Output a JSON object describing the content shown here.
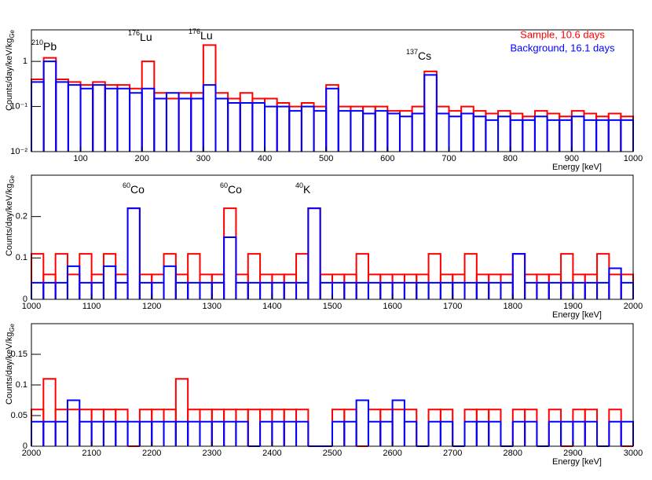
{
  "chart_data": [
    {
      "type": "histogram",
      "log_y": true,
      "legend": "upper right",
      "xlabel": "Energy [keV]",
      "ylabel": "Counts/day/keV/kg",
      "ylabel_sub": "Ge",
      "xlim": [
        20,
        1000
      ],
      "ylim": [
        0.01,
        5
      ],
      "xticks": [
        100,
        200,
        300,
        400,
        500,
        600,
        700,
        800,
        900,
        1000
      ],
      "yticks": [
        {
          "value": 0.01,
          "label": "10⁻²"
        },
        {
          "value": 0.1,
          "label": "10⁻¹"
        },
        1
      ],
      "annotations": [
        {
          "sup": "210",
          "text": "Pb"
        },
        {
          "sup": "176",
          "text": "Lu"
        },
        {
          "sup": "176",
          "text": "Lu"
        },
        {
          "sup": "137",
          "text": "Cs"
        }
      ],
      "bins": [
        20,
        40,
        60,
        80,
        100,
        120,
        140,
        160,
        180,
        200,
        220,
        240,
        260,
        280,
        300,
        320,
        340,
        360,
        380,
        400,
        420,
        440,
        460,
        480,
        500,
        520,
        540,
        560,
        580,
        600,
        620,
        640,
        660,
        680,
        700,
        720,
        740,
        760,
        780,
        800,
        820,
        840,
        860,
        880,
        900,
        920,
        940,
        960,
        980,
        1000
      ],
      "series": [
        {
          "name": "Sample, 10.6 days",
          "color": "#ff0000",
          "values": [
            0.4,
            1.2,
            0.4,
            0.35,
            0.3,
            0.35,
            0.3,
            0.3,
            0.25,
            1.0,
            0.2,
            0.15,
            0.2,
            0.2,
            2.3,
            0.2,
            0.15,
            0.2,
            0.15,
            0.15,
            0.12,
            0.1,
            0.12,
            0.1,
            0.3,
            0.1,
            0.1,
            0.1,
            0.1,
            0.08,
            0.08,
            0.1,
            0.6,
            0.1,
            0.08,
            0.1,
            0.08,
            0.07,
            0.08,
            0.07,
            0.06,
            0.08,
            0.07,
            0.06,
            0.08,
            0.07,
            0.06,
            0.07,
            0.06
          ]
        },
        {
          "name": "Background, 16.1 days",
          "color": "#0000ff",
          "values": [
            0.35,
            1.0,
            0.35,
            0.3,
            0.25,
            0.3,
            0.25,
            0.25,
            0.2,
            0.25,
            0.15,
            0.2,
            0.15,
            0.15,
            0.3,
            0.15,
            0.12,
            0.12,
            0.12,
            0.1,
            0.1,
            0.08,
            0.1,
            0.08,
            0.25,
            0.08,
            0.08,
            0.07,
            0.08,
            0.07,
            0.06,
            0.07,
            0.5,
            0.07,
            0.06,
            0.07,
            0.06,
            0.05,
            0.06,
            0.05,
            0.05,
            0.06,
            0.05,
            0.05,
            0.06,
            0.05,
            0.05,
            0.05,
            0.05
          ]
        }
      ]
    },
    {
      "type": "histogram",
      "log_y": false,
      "xlabel": "Energy [keV]",
      "ylabel": "Counts/day/keV/kg",
      "ylabel_sub": "Ge",
      "xlim": [
        1000,
        2000
      ],
      "ylim": [
        0,
        0.3
      ],
      "xticks": [
        1000,
        1100,
        1200,
        1300,
        1400,
        1500,
        1600,
        1700,
        1800,
        1900,
        2000
      ],
      "yticks": [
        0,
        0.1,
        0.2
      ],
      "annotations": [
        {
          "sup": "60",
          "text": "Co"
        },
        {
          "sup": "60",
          "text": "Co"
        },
        {
          "sup": "40",
          "text": "K"
        }
      ],
      "bins": [
        1000,
        1020,
        1040,
        1060,
        1080,
        1100,
        1120,
        1140,
        1160,
        1180,
        1200,
        1220,
        1240,
        1260,
        1280,
        1300,
        1320,
        1340,
        1360,
        1380,
        1400,
        1420,
        1440,
        1460,
        1480,
        1500,
        1520,
        1540,
        1560,
        1580,
        1600,
        1620,
        1640,
        1660,
        1680,
        1700,
        1720,
        1740,
        1760,
        1780,
        1800,
        1820,
        1840,
        1860,
        1880,
        1900,
        1920,
        1940,
        1960,
        1980,
        2000
      ],
      "series": [
        {
          "name": "Sample, 10.6 days",
          "color": "#ff0000",
          "values": [
            0.11,
            0.06,
            0.11,
            0.06,
            0.11,
            0.06,
            0.11,
            0.06,
            0.22,
            0.06,
            0.06,
            0.11,
            0.06,
            0.11,
            0.06,
            0.06,
            0.22,
            0.06,
            0.11,
            0.06,
            0.06,
            0.06,
            0.11,
            0.22,
            0.06,
            0.06,
            0.06,
            0.11,
            0.06,
            0.06,
            0.06,
            0.06,
            0.06,
            0.11,
            0.06,
            0.06,
            0.11,
            0.06,
            0.06,
            0.06,
            0.11,
            0.06,
            0.06,
            0.06,
            0.11,
            0.06,
            0.06,
            0.11,
            0.06,
            0.06
          ]
        },
        {
          "name": "Background, 16.1 days",
          "color": "#0000ff",
          "values": [
            0.04,
            0.04,
            0.04,
            0.08,
            0.04,
            0.04,
            0.08,
            0.04,
            0.22,
            0.04,
            0.04,
            0.08,
            0.04,
            0.04,
            0.04,
            0.04,
            0.15,
            0.04,
            0.04,
            0.04,
            0.04,
            0.04,
            0.04,
            0.22,
            0.04,
            0.04,
            0.04,
            0.04,
            0.04,
            0.04,
            0.04,
            0.04,
            0.04,
            0.04,
            0.04,
            0.04,
            0.04,
            0.04,
            0.04,
            0.04,
            0.11,
            0.04,
            0.04,
            0.04,
            0.04,
            0.04,
            0.04,
            0.04,
            0.075,
            0.04
          ]
        }
      ]
    },
    {
      "type": "histogram",
      "log_y": false,
      "xlabel": "Energy [keV]",
      "ylabel": "Counts/day/keV/kg",
      "ylabel_sub": "Ge",
      "xlim": [
        2000,
        3000
      ],
      "ylim": [
        0,
        0.2
      ],
      "xticks": [
        2000,
        2100,
        2200,
        2300,
        2400,
        2500,
        2600,
        2700,
        2800,
        2900,
        3000
      ],
      "yticks": [
        0,
        0.05,
        0.1,
        0.15
      ],
      "annotations": [],
      "bins": [
        2000,
        2020,
        2040,
        2060,
        2080,
        2100,
        2120,
        2140,
        2160,
        2180,
        2200,
        2220,
        2240,
        2260,
        2280,
        2300,
        2320,
        2340,
        2360,
        2380,
        2400,
        2420,
        2440,
        2460,
        2480,
        2500,
        2520,
        2540,
        2560,
        2580,
        2600,
        2620,
        2640,
        2660,
        2680,
        2700,
        2720,
        2740,
        2760,
        2780,
        2800,
        2820,
        2840,
        2860,
        2880,
        2900,
        2920,
        2940,
        2960,
        2980,
        3000
      ],
      "series": [
        {
          "name": "Sample, 10.6 days",
          "color": "#ff0000",
          "values": [
            0.06,
            0.11,
            0.06,
            0.06,
            0.06,
            0.06,
            0.06,
            0.06,
            0,
            0.06,
            0.06,
            0.06,
            0.11,
            0.06,
            0.06,
            0.06,
            0.06,
            0.06,
            0.06,
            0.06,
            0.06,
            0.06,
            0.06,
            0,
            0,
            0.06,
            0.06,
            0,
            0.06,
            0.06,
            0.06,
            0.06,
            0,
            0.06,
            0.06,
            0,
            0.06,
            0.06,
            0.06,
            0,
            0.06,
            0.06,
            0,
            0.06,
            0,
            0.06,
            0.06,
            0,
            0.06,
            0
          ]
        },
        {
          "name": "Background, 16.1 days",
          "color": "#0000ff",
          "values": [
            0.04,
            0.04,
            0.04,
            0.075,
            0.04,
            0.04,
            0.04,
            0.04,
            0.04,
            0.04,
            0.04,
            0.04,
            0.04,
            0.04,
            0.04,
            0.04,
            0.04,
            0.04,
            0,
            0.04,
            0.04,
            0.04,
            0.04,
            0,
            0,
            0.04,
            0.04,
            0.075,
            0.04,
            0.04,
            0.075,
            0.04,
            0,
            0.04,
            0.04,
            0,
            0.04,
            0.04,
            0.04,
            0,
            0.04,
            0.04,
            0,
            0.04,
            0.04,
            0.04,
            0.04,
            0,
            0.04,
            0.04
          ]
        }
      ]
    }
  ]
}
